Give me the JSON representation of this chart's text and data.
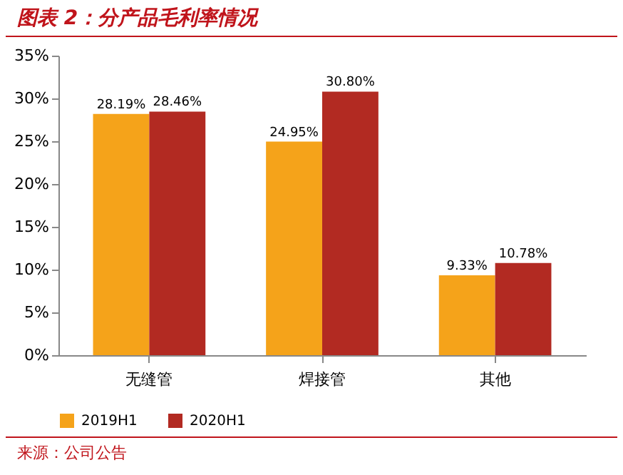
{
  "chart_data": {
    "type": "bar",
    "title": "图表 2：分产品毛利率情况",
    "categories": [
      "无缝管",
      "焊接管",
      "其他"
    ],
    "series": [
      {
        "name": "2019H1",
        "color": "#f5a31a",
        "values": [
          28.19,
          24.95,
          9.33
        ],
        "value_labels": [
          "28.19%",
          "24.95%",
          "9.33%"
        ]
      },
      {
        "name": "2020H1",
        "color": "#b22a22",
        "values": [
          28.46,
          30.8,
          10.78
        ],
        "value_labels": [
          "28.46%",
          "30.80%",
          "10.78%"
        ]
      }
    ],
    "ylim": [
      0,
      35
    ],
    "yticks": [
      {
        "value": 0,
        "label": "0%"
      },
      {
        "value": 5,
        "label": "5%"
      },
      {
        "value": 10,
        "label": "10%"
      },
      {
        "value": 15,
        "label": "15%"
      },
      {
        "value": 20,
        "label": "20%"
      },
      {
        "value": 25,
        "label": "25%"
      },
      {
        "value": 30,
        "label": "30%"
      },
      {
        "value": 35,
        "label": "35%"
      }
    ],
    "grid": false,
    "legend": "bottom",
    "annotations": [
      "来源：公司公告"
    ]
  }
}
